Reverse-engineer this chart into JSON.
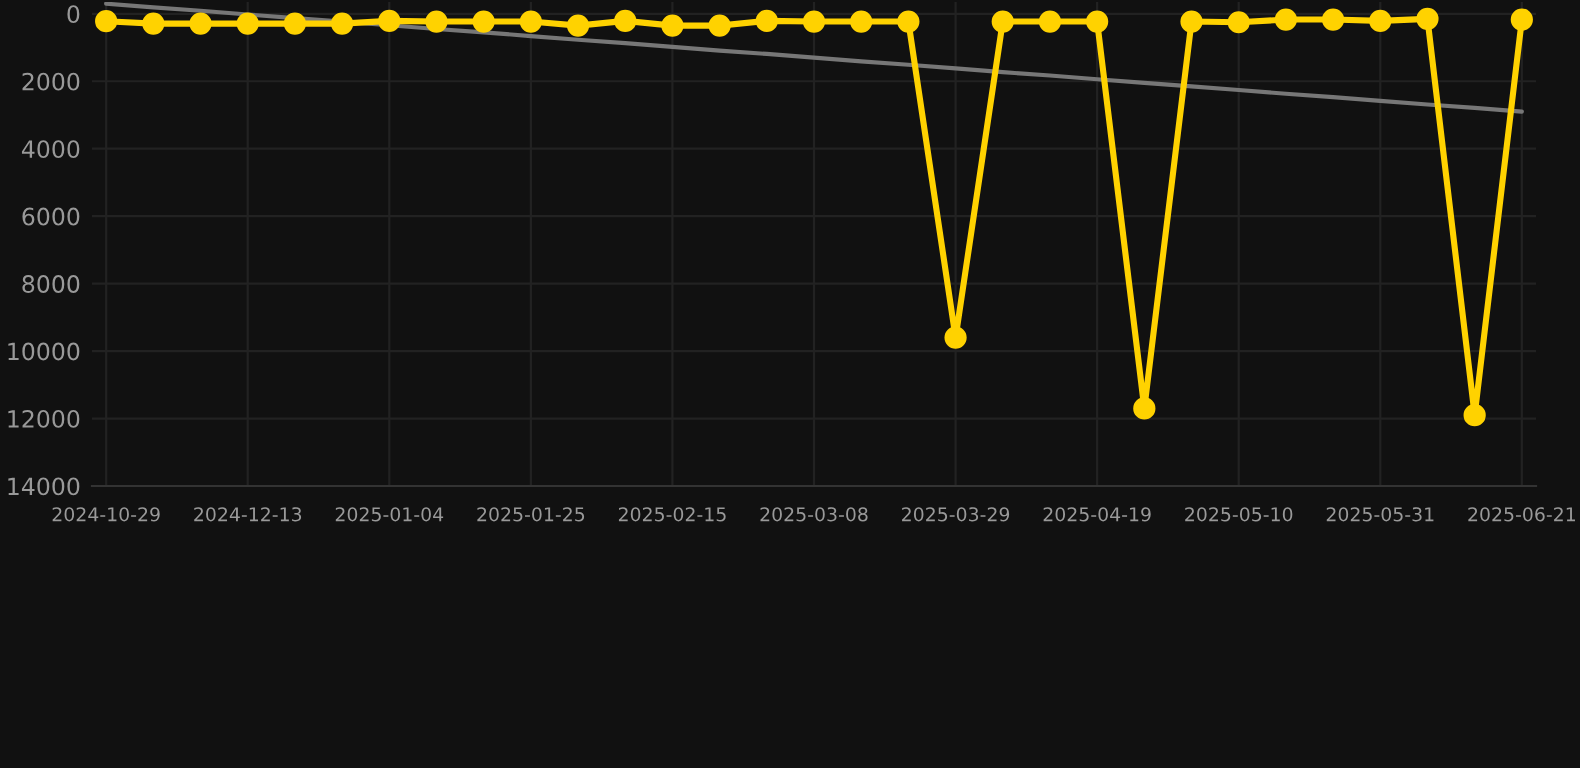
{
  "chart_data": {
    "type": "line",
    "categories": [
      "2024-10-29",
      null,
      null,
      "2024-12-13",
      null,
      null,
      "2025-01-04",
      null,
      null,
      "2025-01-25",
      null,
      null,
      "2025-02-15",
      null,
      null,
      "2025-03-08",
      null,
      null,
      "2025-03-29",
      null,
      null,
      "2025-04-19",
      null,
      null,
      "2025-05-10",
      null,
      null,
      "2025-05-31",
      null,
      null,
      "2025-06-21"
    ],
    "series": [
      {
        "color": "#777777",
        "marker": "none",
        "values": [
          -300,
          -190,
          -90,
          20,
          130,
          230,
          340,
          450,
          550,
          660,
          770,
          870,
          980,
          1090,
          1190,
          1300,
          1410,
          1510,
          1620,
          1730,
          1830,
          1940,
          2050,
          2150,
          2260,
          2370,
          2470,
          2580,
          2690,
          2790,
          2900
        ]
      },
      {
        "color": "#ffd200",
        "marker": "circle",
        "values": [
          220,
          290,
          290,
          290,
          290,
          290,
          210,
          230,
          230,
          230,
          350,
          210,
          350,
          350,
          210,
          230,
          230,
          230,
          9600,
          230,
          230,
          230,
          11700,
          230,
          250,
          170,
          170,
          210,
          150,
          11900,
          170
        ]
      }
    ],
    "ylim": [
      14000,
      -350
    ],
    "yticks": [
      0,
      2000,
      4000,
      6000,
      8000,
      10000,
      12000,
      14000
    ],
    "grid": true,
    "line_style": "solid"
  }
}
